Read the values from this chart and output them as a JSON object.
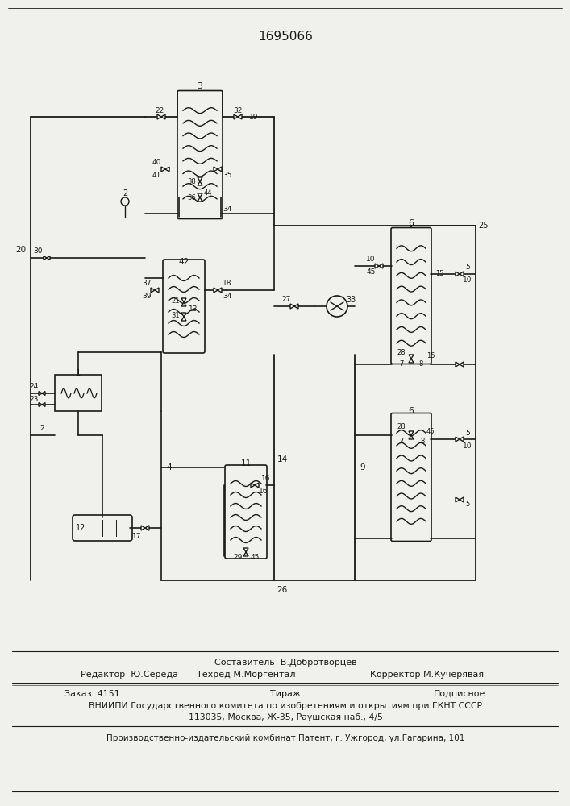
{
  "patent_number": "1695066",
  "bg_color": "#f0f0ec",
  "line_color": "#1a1a1a",
  "text_color": "#1a1a1a",
  "footer_editor": "Редактор  Ю.Середа",
  "footer_composer": "Составитель  В.Добротворцев",
  "footer_techred": "Техред М.Моргентал",
  "footer_corrector": "Корректор М.Кучерявая",
  "footer_zakaz": "Заказ  4151",
  "footer_tirazh": "Тираж",
  "footer_podpisnoe": "Подписное",
  "footer_vniipи": "ВНИИПИ Государственного комитета по изобретениям и открытиям при ГКНТ СССР",
  "footer_address": "113035, Москва, Ж-35, Раушская наб., 4/5",
  "footer_patent": "Производственно-издательский комбинат Патент, г. Ужгород, ул.Гагарина, 101"
}
